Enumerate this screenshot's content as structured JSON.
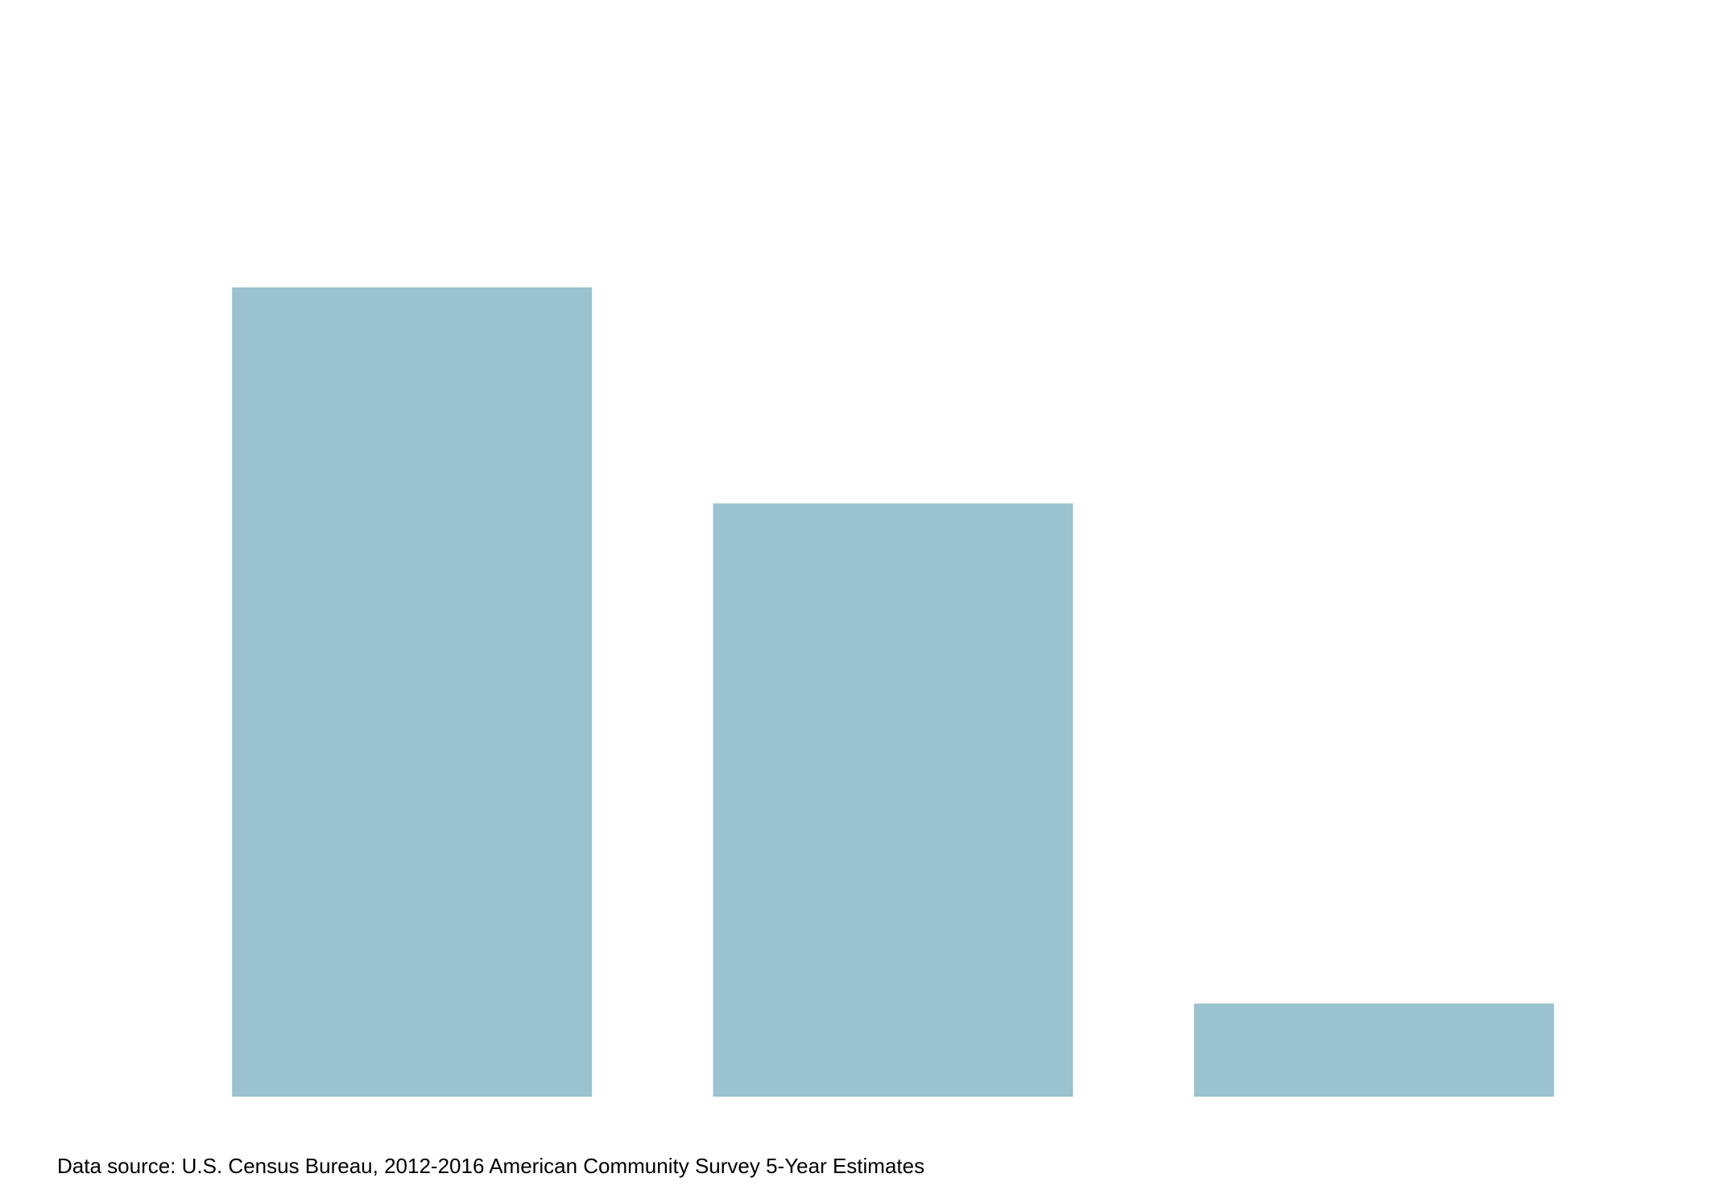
{
  "chart_data": {
    "type": "bar",
    "categories": [
      "",
      "",
      ""
    ],
    "values": [
      100,
      73.3,
      11.5
    ],
    "ylim": [
      0,
      100
    ],
    "bar_color": "#9ac2cf",
    "grid": false,
    "title": "",
    "xlabel": "",
    "ylabel": ""
  },
  "footer": {
    "source": "Data source:  U.S. Census Bureau, 2012-2016 American Community Survey 5-Year Estimates"
  }
}
